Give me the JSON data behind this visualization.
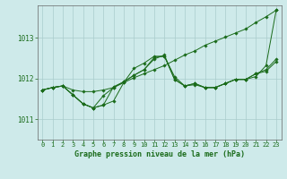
{
  "title": "Graphe pression niveau de la mer (hPa)",
  "background_color": "#ceeaea",
  "grid_color": "#aacccc",
  "line_color": "#1a6b1a",
  "marker_color": "#1a6b1a",
  "xlim": [
    -0.5,
    23.5
  ],
  "ylim": [
    1010.5,
    1013.8
  ],
  "yticks": [
    1011,
    1012,
    1013
  ],
  "xticks": [
    0,
    1,
    2,
    3,
    4,
    5,
    6,
    7,
    8,
    9,
    10,
    11,
    12,
    13,
    14,
    15,
    16,
    17,
    18,
    19,
    20,
    21,
    22,
    23
  ],
  "lines": [
    [
      1011.72,
      1011.78,
      1011.82,
      1011.72,
      1011.68,
      1011.68,
      1011.72,
      1011.78,
      1011.9,
      1012.02,
      1012.12,
      1012.22,
      1012.32,
      1012.45,
      1012.58,
      1012.68,
      1012.82,
      1012.92,
      1013.02,
      1013.12,
      1013.22,
      1013.38,
      1013.52,
      1013.68
    ],
    [
      1011.72,
      1011.78,
      1011.82,
      1011.6,
      1011.38,
      1011.28,
      1011.35,
      1011.45,
      1011.9,
      1012.25,
      1012.38,
      1012.55,
      1012.55,
      1012.05,
      1011.82,
      1011.85,
      1011.78,
      1011.78,
      1011.88,
      1011.98,
      1011.98,
      1012.05,
      1012.32,
      1013.68
    ],
    [
      1011.72,
      1011.78,
      1011.82,
      1011.6,
      1011.38,
      1011.28,
      1011.35,
      1011.8,
      1011.92,
      1012.08,
      1012.22,
      1012.52,
      1012.55,
      1011.98,
      1011.82,
      1011.88,
      1011.78,
      1011.78,
      1011.88,
      1011.98,
      1011.98,
      1012.12,
      1012.22,
      1012.48
    ],
    [
      1011.72,
      1011.78,
      1011.82,
      1011.6,
      1011.38,
      1011.28,
      1011.58,
      1011.78,
      1011.92,
      1012.08,
      1012.22,
      1012.48,
      1012.58,
      1011.98,
      1011.82,
      1011.88,
      1011.78,
      1011.78,
      1011.88,
      1011.98,
      1011.98,
      1012.12,
      1012.18,
      1012.42
    ]
  ]
}
